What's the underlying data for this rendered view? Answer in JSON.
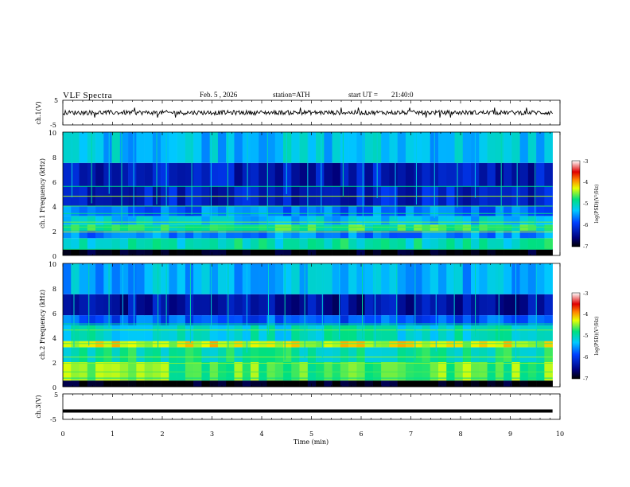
{
  "header": {
    "title": "VLF Spectra",
    "date": "Feb. 5 , 2026",
    "station": "station=ATH",
    "start_label": "start UT =",
    "start_value": "21:40:0"
  },
  "colors": {
    "trace": "#000000",
    "axes": "#000000",
    "background": "#ffffff"
  },
  "chart_data": [
    {
      "type": "line",
      "panel": "ch1-waveform",
      "ylabel": "ch.1(V)",
      "ylim": [
        -5,
        5
      ],
      "yticks": [
        "5",
        "-5"
      ],
      "xlim": [
        0,
        10
      ],
      "x_extent_min": 9.85,
      "series": [
        {
          "name": "",
          "description_value": "noisy waveform about 0 V, amplitude about ±1 V, occasional spikes to ±2 V"
        }
      ]
    },
    {
      "type": "heatmap",
      "panel": "ch1-spectrogram",
      "ylabel": "ch.1 Frequency (kHz)",
      "ylim": [
        0,
        10
      ],
      "yticks": [
        "0",
        "2",
        "4",
        "6",
        "8",
        "10"
      ],
      "xlim": [
        0,
        10
      ],
      "x_extent_min": 9.85,
      "colorbar": {
        "label": "log(PSD)(V²/Hz)",
        "range": [
          -7,
          -3
        ],
        "ticks": [
          "-3",
          "-4",
          "-5",
          "-6",
          "-7"
        ]
      },
      "bands": [
        {
          "khz_from": 0,
          "khz_to": 0.5,
          "log_psd": -7
        },
        {
          "khz_from": 0.5,
          "khz_to": 1.4,
          "log_psd": -5.0
        },
        {
          "khz_from": 1.4,
          "khz_to": 2.0,
          "log_psd": -5.6
        },
        {
          "khz_from": 2.0,
          "khz_to": 2.5,
          "log_psd": -4.8
        },
        {
          "khz_from": 2.5,
          "khz_to": 3.2,
          "log_psd": -5.3
        },
        {
          "khz_from": 3.2,
          "khz_to": 4.0,
          "log_psd": -5.7
        },
        {
          "khz_from": 4.0,
          "khz_to": 5.6,
          "log_psd": -6.2
        },
        {
          "khz_from": 5.6,
          "khz_to": 7.5,
          "log_psd": -6.3
        },
        {
          "khz_from": 7.5,
          "khz_to": 10.0,
          "log_psd": -5.3
        }
      ],
      "tones_khz": [
        0.5,
        1.9,
        2.3,
        2.7,
        3.4,
        4.0,
        4.8,
        5.6
      ],
      "spheric_times_min": [
        0.2,
        0.55,
        0.9,
        1.2,
        1.45,
        1.9,
        2.1,
        2.6,
        3.0,
        3.3,
        3.7,
        4.1,
        4.5,
        4.9,
        5.2,
        5.6,
        6.0,
        6.3,
        6.7,
        7.1,
        7.5,
        7.9,
        8.3,
        8.8,
        9.1,
        9.5
      ]
    },
    {
      "type": "heatmap",
      "panel": "ch2-spectrogram",
      "ylabel": "ch.2 Frequency (kHz)",
      "ylim": [
        0,
        10
      ],
      "yticks": [
        "0",
        "2",
        "4",
        "6",
        "8",
        "10"
      ],
      "xlim": [
        0,
        10
      ],
      "x_extent_min": 9.85,
      "colorbar": {
        "label": "log(PSD)(V²/Hz)",
        "range": [
          -7,
          -3
        ],
        "ticks": [
          "-3",
          "-4",
          "-5",
          "-6",
          "-7"
        ]
      },
      "bands": [
        {
          "khz_from": 0,
          "khz_to": 0.5,
          "log_psd": -7
        },
        {
          "khz_from": 0.5,
          "khz_to": 2.0,
          "log_psd": -4.6
        },
        {
          "khz_from": 2.0,
          "khz_to": 3.2,
          "log_psd": -4.9
        },
        {
          "khz_from": 3.2,
          "khz_to": 3.7,
          "log_psd": -4.3
        },
        {
          "khz_from": 3.7,
          "khz_to": 5.0,
          "log_psd": -5.1
        },
        {
          "khz_from": 5.0,
          "khz_to": 5.8,
          "log_psd": -5.8
        },
        {
          "khz_from": 5.8,
          "khz_to": 7.5,
          "log_psd": -6.4
        },
        {
          "khz_from": 7.5,
          "khz_to": 10.0,
          "log_psd": -5.4
        }
      ],
      "tones_khz": [
        0.7,
        1.2,
        1.9,
        2.4,
        3.5,
        4.6,
        5.1
      ],
      "spheric_times_min": [
        0.2,
        0.55,
        0.9,
        1.2,
        1.45,
        1.9,
        2.1,
        2.6,
        3.0,
        3.3,
        3.7,
        4.1,
        4.5,
        4.9,
        5.2,
        5.6,
        6.0,
        6.3,
        6.7,
        7.1,
        7.5,
        7.9,
        8.3,
        8.8,
        9.1,
        9.5
      ]
    },
    {
      "type": "line",
      "panel": "ch3-waveform",
      "ylabel": "ch.3(V)",
      "ylim": [
        -5,
        5
      ],
      "yticks": [
        "5",
        "-5"
      ],
      "xlim": [
        0,
        10
      ],
      "x_extent_min": 9.85,
      "series": [
        {
          "name": "",
          "x": [
            0,
            9.85
          ],
          "y": [
            -1.7,
            -1.7
          ]
        }
      ]
    }
  ],
  "xaxis": {
    "label": "Time (min)",
    "ticks": [
      "0",
      "1",
      "2",
      "3",
      "4",
      "5",
      "6",
      "7",
      "8",
      "9",
      "10"
    ]
  }
}
